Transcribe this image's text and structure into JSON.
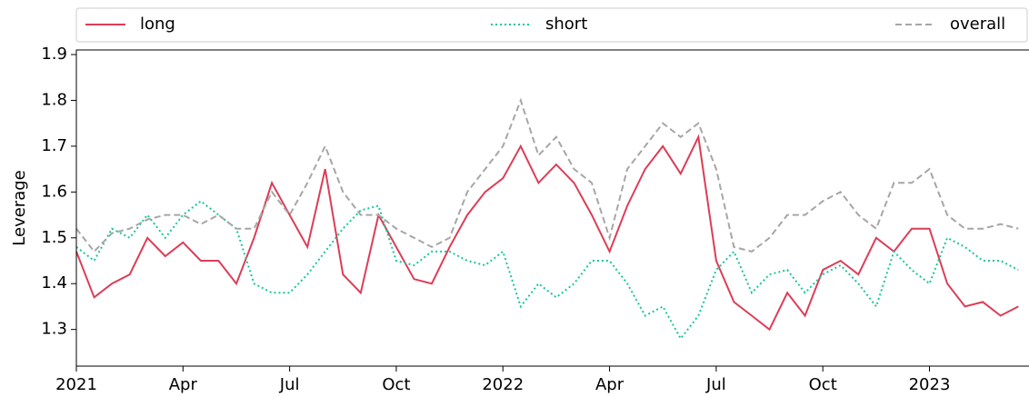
{
  "chart_data": {
    "type": "line",
    "y_label": "Leverage",
    "x": [
      0,
      0.5,
      1,
      1.5,
      2,
      2.5,
      3,
      3.5,
      4,
      4.5,
      5,
      5.5,
      6,
      6.5,
      7,
      7.5,
      8,
      8.5,
      9,
      9.5,
      10,
      10.5,
      11,
      11.5,
      12,
      12.5,
      13,
      13.5,
      14,
      14.5,
      15,
      15.5,
      16,
      16.5,
      17,
      17.5,
      18,
      18.5,
      19,
      19.5,
      20,
      20.5,
      21,
      21.5,
      22,
      22.5,
      23,
      23.5,
      24,
      24.5,
      25,
      25.5,
      26,
      26.5
    ],
    "series": [
      {
        "name": "long",
        "color": "#dc3d57",
        "dash": "solid",
        "values": [
          1.47,
          1.37,
          1.4,
          1.42,
          1.5,
          1.46,
          1.49,
          1.45,
          1.45,
          1.4,
          1.5,
          1.62,
          1.55,
          1.48,
          1.65,
          1.42,
          1.38,
          1.55,
          1.48,
          1.41,
          1.4,
          1.48,
          1.55,
          1.6,
          1.63,
          1.7,
          1.62,
          1.66,
          1.62,
          1.55,
          1.47,
          1.57,
          1.65,
          1.7,
          1.64,
          1.72,
          1.45,
          1.36,
          1.33,
          1.3,
          1.38,
          1.33,
          1.43,
          1.45,
          1.42,
          1.5,
          1.47,
          1.52,
          1.52,
          1.4,
          1.35,
          1.36,
          1.33,
          1.35
        ]
      },
      {
        "name": "short",
        "color": "#14c79a",
        "dash": "dotted",
        "values": [
          1.48,
          1.45,
          1.52,
          1.5,
          1.55,
          1.5,
          1.55,
          1.58,
          1.55,
          1.52,
          1.4,
          1.38,
          1.38,
          1.42,
          1.47,
          1.52,
          1.56,
          1.57,
          1.45,
          1.44,
          1.47,
          1.47,
          1.45,
          1.44,
          1.47,
          1.35,
          1.4,
          1.37,
          1.4,
          1.45,
          1.45,
          1.4,
          1.33,
          1.35,
          1.28,
          1.33,
          1.43,
          1.47,
          1.38,
          1.42,
          1.43,
          1.38,
          1.42,
          1.44,
          1.4,
          1.35,
          1.47,
          1.43,
          1.4,
          1.5,
          1.48,
          1.45,
          1.45,
          1.43
        ]
      },
      {
        "name": "overall",
        "color": "#a6a6a6",
        "dash": "dashed",
        "values": [
          1.52,
          1.47,
          1.51,
          1.52,
          1.54,
          1.55,
          1.55,
          1.53,
          1.55,
          1.52,
          1.52,
          1.6,
          1.55,
          1.62,
          1.7,
          1.6,
          1.55,
          1.55,
          1.52,
          1.5,
          1.48,
          1.5,
          1.6,
          1.65,
          1.7,
          1.8,
          1.68,
          1.72,
          1.65,
          1.62,
          1.5,
          1.65,
          1.7,
          1.75,
          1.72,
          1.75,
          1.65,
          1.48,
          1.47,
          1.5,
          1.55,
          1.55,
          1.58,
          1.6,
          1.55,
          1.52,
          1.62,
          1.62,
          1.65,
          1.55,
          1.52,
          1.52,
          1.53,
          1.52
        ]
      }
    ],
    "xlim": [
      0,
      26.8
    ],
    "xticks": [
      {
        "value": 0,
        "label": "2021"
      },
      {
        "value": 3,
        "label": "Apr"
      },
      {
        "value": 6,
        "label": "Jul"
      },
      {
        "value": 9,
        "label": "Oct"
      },
      {
        "value": 12,
        "label": "2022"
      },
      {
        "value": 15,
        "label": "Apr"
      },
      {
        "value": 18,
        "label": "Jul"
      },
      {
        "value": 21,
        "label": "Oct"
      },
      {
        "value": 24,
        "label": "2023"
      }
    ],
    "ylim": [
      1.22,
      1.91
    ],
    "yticks": [
      1.3,
      1.4,
      1.5,
      1.6,
      1.7,
      1.8,
      1.9
    ],
    "grid": false,
    "legend": "top"
  }
}
